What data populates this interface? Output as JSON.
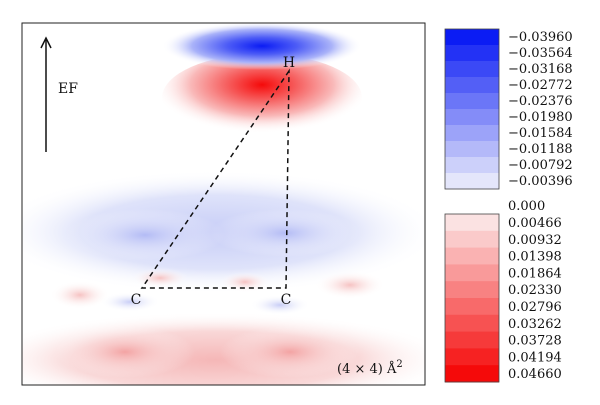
{
  "field_label": "EF",
  "atoms": [
    {
      "label": "H"
    },
    {
      "label": "C"
    },
    {
      "label": "C"
    }
  ],
  "scale_note": {
    "prefix": "(4 × 4) ",
    "unit": "Å",
    "exp": "2"
  },
  "colorbar": {
    "negative": {
      "color_min": "#e4e6fb",
      "color_max": "#0b1cf4",
      "levels": [
        "−0.03960",
        "−0.03564",
        "−0.03168",
        "−0.02772",
        "−0.02376",
        "−0.01980",
        "−0.01584",
        "−0.01188",
        "−0.00792",
        "−0.00396"
      ]
    },
    "zero": "0.000",
    "positive": {
      "color_min": "#fbe2e2",
      "color_max": "#f50a0a",
      "levels": [
        "0.00466",
        "0.00932",
        "0.01398",
        "0.01864",
        "0.02330",
        "0.02796",
        "0.03262",
        "0.03728",
        "0.04194",
        "0.04660"
      ]
    }
  }
}
